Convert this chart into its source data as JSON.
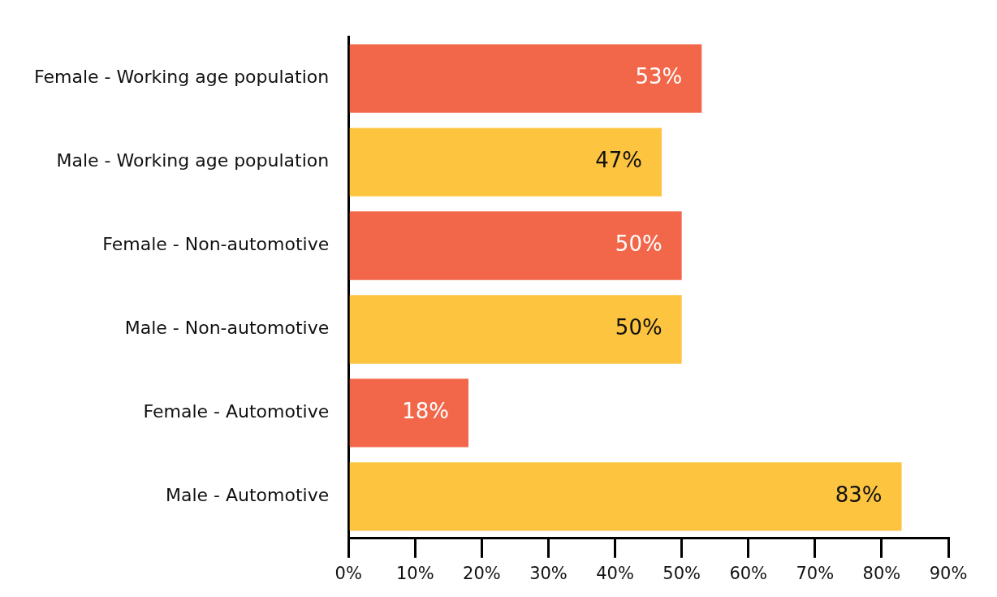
{
  "chart_data": {
    "type": "bar",
    "orientation": "horizontal",
    "categories": [
      "Female - Working age population",
      "Male - Working age population",
      "Female - Non-automotive",
      "Male - Non-automotive",
      "Female - Automotive",
      "Male - Automotive"
    ],
    "values": [
      53,
      47,
      50,
      50,
      18,
      83
    ],
    "colors": [
      "#f2674a",
      "#fdc43f",
      "#f2674a",
      "#fdc43f",
      "#f2674a",
      "#fdc43f"
    ],
    "value_labels": [
      "53%",
      "47%",
      "50%",
      "50%",
      "18%",
      "83%"
    ],
    "xlim": [
      0,
      90
    ],
    "xticks": [
      {
        "value": 0,
        "label": "0%"
      },
      {
        "value": 10,
        "label": "10%"
      },
      {
        "value": 20,
        "label": "20%"
      },
      {
        "value": 30,
        "label": "30%"
      },
      {
        "value": 40,
        "label": "40%"
      },
      {
        "value": 50,
        "label": "50%"
      },
      {
        "value": 60,
        "label": "60%"
      },
      {
        "value": 70,
        "label": "70%"
      },
      {
        "value": 80,
        "label": "80%"
      },
      {
        "value": 90,
        "label": "90%"
      }
    ],
    "grid": false,
    "legend": false
  }
}
